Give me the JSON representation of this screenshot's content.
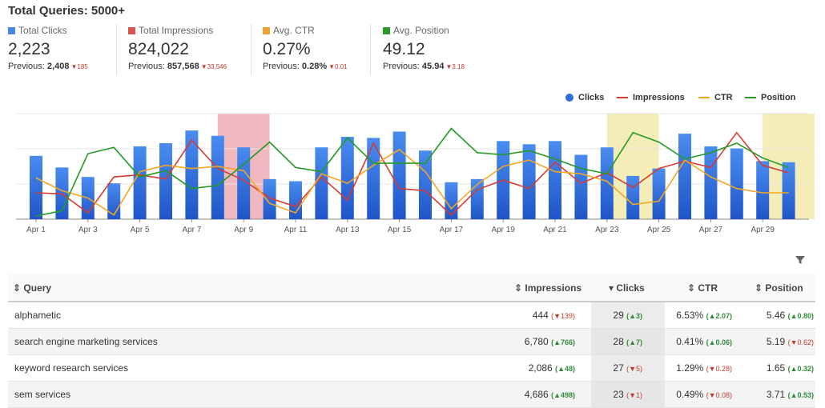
{
  "header": {
    "title": "Total Queries: 5000+"
  },
  "kpis": [
    {
      "label": "Total Clicks",
      "color": "#4a86e8",
      "value": "2,223",
      "prev_label": "Previous:",
      "prev_value": "2,408",
      "delta": "185"
    },
    {
      "label": "Total Impressions",
      "color": "#d9534f",
      "value": "824,022",
      "prev_label": "Previous:",
      "prev_value": "857,568",
      "delta": "33,546"
    },
    {
      "label": "Avg. CTR",
      "color": "#f0a030",
      "value": "0.27%",
      "prev_label": "Previous:",
      "prev_value": "0.28%",
      "delta": "0.01"
    },
    {
      "label": "Avg. Position",
      "color": "#2a9a2a",
      "value": "49.12",
      "prev_label": "Previous:",
      "prev_value": "45.94",
      "delta": "3.18"
    }
  ],
  "legend": [
    {
      "name": "Clicks",
      "kind": "dot",
      "color": "#2f6fd9"
    },
    {
      "name": "Impressions",
      "kind": "line",
      "color": "#d63b30"
    },
    {
      "name": "CTR",
      "kind": "line",
      "color": "#f5a623"
    },
    {
      "name": "Position",
      "kind": "line",
      "color": "#239b23"
    }
  ],
  "chart_data": {
    "type": "bar",
    "categories": [
      "Apr 1",
      "Apr 2",
      "Apr 3",
      "Apr 4",
      "Apr 5",
      "Apr 6",
      "Apr 7",
      "Apr 8",
      "Apr 9",
      "Apr 10",
      "Apr 11",
      "Apr 12",
      "Apr 13",
      "Apr 14",
      "Apr 15",
      "Apr 16",
      "Apr 17",
      "Apr 18",
      "Apr 19",
      "Apr 20",
      "Apr 21",
      "Apr 22",
      "Apr 23",
      "Apr 24",
      "Apr 25",
      "Apr 26",
      "Apr 27",
      "Apr 28",
      "Apr 29",
      "Apr 30"
    ],
    "tick_labels": [
      "Apr 1",
      "Apr 3",
      "Apr 5",
      "Apr 7",
      "Apr 9",
      "Apr 11",
      "Apr 13",
      "Apr 15",
      "Apr 17",
      "Apr 19",
      "Apr 21",
      "Apr 23",
      "Apr 25",
      "Apr 27",
      "Apr 29"
    ],
    "series": [
      {
        "name": "Clicks",
        "kind": "bar",
        "color": "#2f6fd9",
        "values": [
          0.6,
          0.49,
          0.4,
          0.34,
          0.69,
          0.72,
          0.84,
          0.79,
          0.68,
          0.38,
          0.36,
          0.68,
          0.78,
          0.77,
          0.83,
          0.65,
          0.35,
          0.38,
          0.74,
          0.71,
          0.74,
          0.61,
          0.68,
          0.41,
          0.48,
          0.81,
          0.69,
          0.67,
          0.55,
          0.54
        ]
      },
      {
        "name": "Impressions",
        "kind": "line",
        "color": "#d63b30",
        "values": [
          0.25,
          0.24,
          0.06,
          0.4,
          0.42,
          0.38,
          0.75,
          0.48,
          0.37,
          0.2,
          0.12,
          0.4,
          0.18,
          0.72,
          0.29,
          0.27,
          0.04,
          0.28,
          0.37,
          0.29,
          0.54,
          0.34,
          0.44,
          0.3,
          0.48,
          0.55,
          0.49,
          0.82,
          0.51,
          0.44
        ]
      },
      {
        "name": "CTR",
        "kind": "line",
        "color": "#f5a623",
        "values": [
          0.39,
          0.27,
          0.2,
          0.04,
          0.45,
          0.51,
          0.48,
          0.5,
          0.46,
          0.15,
          0.06,
          0.43,
          0.34,
          0.51,
          0.66,
          0.45,
          0.1,
          0.33,
          0.5,
          0.56,
          0.45,
          0.43,
          0.36,
          0.14,
          0.17,
          0.56,
          0.4,
          0.29,
          0.25,
          0.25
        ]
      },
      {
        "name": "Position",
        "kind": "line",
        "color": "#239b23",
        "values": [
          0.03,
          0.08,
          0.62,
          0.68,
          0.4,
          0.46,
          0.29,
          0.32,
          0.52,
          0.73,
          0.49,
          0.45,
          0.77,
          0.53,
          0.53,
          0.53,
          0.86,
          0.63,
          0.61,
          0.65,
          0.57,
          0.48,
          0.43,
          0.82,
          0.73,
          0.57,
          0.63,
          0.72,
          0.58,
          0.49
        ]
      }
    ],
    "highlights": [
      {
        "index": 8,
        "color": "#f0b8bf"
      },
      {
        "index": 23,
        "color": "#f5edb8"
      },
      {
        "index": 29,
        "color": "#f5edb8"
      }
    ],
    "grid": true
  },
  "table": {
    "columns": [
      "Query",
      "Impressions",
      "Clicks",
      "CTR",
      "Position"
    ],
    "rows": [
      {
        "query": "alphametic",
        "impressions": "444",
        "imp_delta": "139",
        "imp_dir": "down",
        "clicks": "29",
        "clk_delta": "3",
        "clk_dir": "up",
        "ctr": "6.53%",
        "ctr_delta": "2.07",
        "ctr_dir": "up",
        "position": "5.46",
        "pos_delta": "0.80",
        "pos_dir": "up"
      },
      {
        "query": "search engine marketing services",
        "impressions": "6,780",
        "imp_delta": "766",
        "imp_dir": "up",
        "clicks": "28",
        "clk_delta": "7",
        "clk_dir": "up",
        "ctr": "0.41%",
        "ctr_delta": "0.06",
        "ctr_dir": "up",
        "position": "5.19",
        "pos_delta": "0.62",
        "pos_dir": "down"
      },
      {
        "query": "keyword research services",
        "impressions": "2,086",
        "imp_delta": "48",
        "imp_dir": "up",
        "clicks": "27",
        "clk_delta": "5",
        "clk_dir": "down",
        "ctr": "1.29%",
        "ctr_delta": "0.28",
        "ctr_dir": "down",
        "position": "1.65",
        "pos_delta": "0.32",
        "pos_dir": "up"
      },
      {
        "query": "sem services",
        "impressions": "4,686",
        "imp_delta": "498",
        "imp_dir": "up",
        "clicks": "23",
        "clk_delta": "1",
        "clk_dir": "down",
        "ctr": "0.49%",
        "ctr_delta": "0.08",
        "ctr_dir": "down",
        "position": "3.71",
        "pos_delta": "0.53",
        "pos_dir": "up"
      }
    ]
  }
}
